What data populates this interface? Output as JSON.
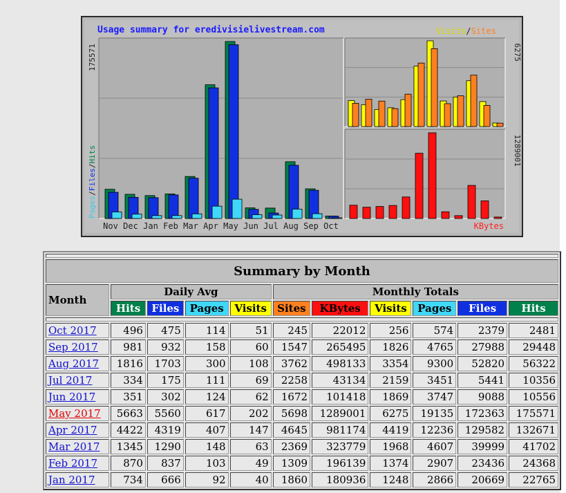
{
  "colors": {
    "hits": "#00804a",
    "files": "#1030e0",
    "pages": "#40d8f8",
    "visits": "#ffff00",
    "sites": "#ff8020",
    "kbytes": "#ff1010"
  },
  "chart_data": {
    "type": "bar",
    "title": "Usage summary for eredivisielivestream.com",
    "categories": [
      "Nov",
      "Dec",
      "Jan",
      "Feb",
      "Mar",
      "Apr",
      "May",
      "Jun",
      "Jul",
      "Aug",
      "Sep",
      "Oct"
    ],
    "left_panel": {
      "ylabel_parts": [
        "Pages",
        "/",
        "Files",
        "/",
        "Hits"
      ],
      "ymax_label": "175571",
      "ymax": 175571,
      "series": [
        {
          "name": "Hits",
          "values": [
            29000,
            24000,
            22765,
            24368,
            41702,
            132671,
            175571,
            10556,
            10356,
            56322,
            29448,
            2481
          ]
        },
        {
          "name": "Files",
          "values": [
            26000,
            21000,
            20669,
            23436,
            39999,
            129582,
            172363,
            9088,
            5441,
            52820,
            27988,
            2379
          ]
        },
        {
          "name": "Pages",
          "values": [
            6500,
            4300,
            2866,
            2907,
            4607,
            12236,
            19135,
            3747,
            3451,
            9300,
            4765,
            574
          ]
        }
      ]
    },
    "top_right_panel": {
      "legend_parts": [
        "Visits",
        "/",
        "Sites"
      ],
      "ymax_label": "6275",
      "ymax": 6275,
      "series": [
        {
          "name": "Visits",
          "values": [
            1900,
            1600,
            1248,
            1374,
            1968,
            4419,
            6275,
            1869,
            2159,
            3354,
            1826,
            256
          ]
        },
        {
          "name": "Sites",
          "values": [
            1700,
            2000,
            1860,
            1309,
            2369,
            4645,
            5698,
            1672,
            2258,
            3762,
            1547,
            245
          ]
        }
      ]
    },
    "bottom_right_panel": {
      "legend": "KBytes",
      "ymax_label": "1289001",
      "ymax": 1289001,
      "series": [
        {
          "name": "KBytes",
          "values": [
            200000,
            170000,
            180936,
            196139,
            323779,
            981174,
            1289001,
            101418,
            43134,
            498133,
            265495,
            22012
          ]
        }
      ]
    }
  },
  "table": {
    "title": "Summary by Month",
    "month_header": "Month",
    "daily_avg_header": "Daily Avg",
    "monthly_totals_header": "Monthly Totals",
    "columns": [
      "Hits",
      "Files",
      "Pages",
      "Visits",
      "Sites",
      "KBytes",
      "Visits",
      "Pages",
      "Files",
      "Hits"
    ],
    "rows": [
      {
        "month": "Oct 2017",
        "values": [
          "496",
          "475",
          "114",
          "51",
          "245",
          "22012",
          "256",
          "574",
          "2379",
          "2481"
        ]
      },
      {
        "month": "Sep 2017",
        "values": [
          "981",
          "932",
          "158",
          "60",
          "1547",
          "265495",
          "1826",
          "4765",
          "27988",
          "29448"
        ]
      },
      {
        "month": "Aug 2017",
        "values": [
          "1816",
          "1703",
          "300",
          "108",
          "3762",
          "498133",
          "3354",
          "9300",
          "52820",
          "56322"
        ]
      },
      {
        "month": "Jul 2017",
        "values": [
          "334",
          "175",
          "111",
          "69",
          "2258",
          "43134",
          "2159",
          "3451",
          "5441",
          "10356"
        ]
      },
      {
        "month": "Jun 2017",
        "values": [
          "351",
          "302",
          "124",
          "62",
          "1672",
          "101418",
          "1869",
          "3747",
          "9088",
          "10556"
        ]
      },
      {
        "month": "May 2017",
        "values": [
          "5663",
          "5560",
          "617",
          "202",
          "5698",
          "1289001",
          "6275",
          "19135",
          "172363",
          "175571"
        ],
        "current": true
      },
      {
        "month": "Apr 2017",
        "values": [
          "4422",
          "4319",
          "407",
          "147",
          "4645",
          "981174",
          "4419",
          "12236",
          "129582",
          "132671"
        ]
      },
      {
        "month": "Mar 2017",
        "values": [
          "1345",
          "1290",
          "148",
          "63",
          "2369",
          "323779",
          "1968",
          "4607",
          "39999",
          "41702"
        ]
      },
      {
        "month": "Feb 2017",
        "values": [
          "870",
          "837",
          "103",
          "49",
          "1309",
          "196139",
          "1374",
          "2907",
          "23436",
          "24368"
        ]
      },
      {
        "month": "Jan 2017",
        "values": [
          "734",
          "666",
          "92",
          "40",
          "1860",
          "180936",
          "1248",
          "2866",
          "20669",
          "22765"
        ]
      }
    ]
  }
}
